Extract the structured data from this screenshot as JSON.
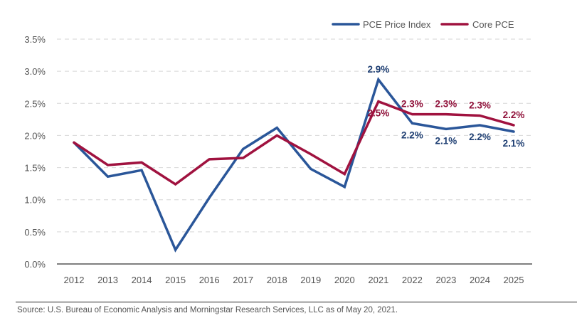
{
  "chart_data": {
    "type": "line",
    "title": "",
    "xlabel": "",
    "ylabel": "",
    "x": [
      "2012",
      "2013",
      "2014",
      "2015",
      "2016",
      "2017",
      "2018",
      "2019",
      "2020",
      "2021",
      "2022",
      "2023",
      "2024",
      "2025"
    ],
    "ylim": [
      0,
      3.5
    ],
    "yticks": [
      0,
      0.5,
      1.0,
      1.5,
      2.0,
      2.5,
      3.0,
      3.5
    ],
    "ytick_labels": [
      "0.0%",
      "0.5%",
      "1.0%",
      "1.5%",
      "2.0%",
      "2.5%",
      "3.0%",
      "3.5%"
    ],
    "grid": "horizontal-dashed",
    "legend_position": "top-right",
    "series": [
      {
        "name": "PCE Price Index",
        "color": "#2a5699",
        "values": [
          1.89,
          1.36,
          1.46,
          0.22,
          1.03,
          1.79,
          2.12,
          1.48,
          1.2,
          2.87,
          2.19,
          2.1,
          2.16,
          2.06
        ],
        "data_labels": [
          {
            "x": "2021",
            "text": "2.9%",
            "position": "above"
          },
          {
            "x": "2022",
            "text": "2.2%",
            "position": "below"
          },
          {
            "x": "2023",
            "text": "2.1%",
            "position": "below"
          },
          {
            "x": "2024",
            "text": "2.2%",
            "position": "below"
          },
          {
            "x": "2025",
            "text": "2.1%",
            "position": "below"
          }
        ]
      },
      {
        "name": "Core PCE",
        "color": "#a0123f",
        "values": [
          1.89,
          1.54,
          1.58,
          1.24,
          1.63,
          1.65,
          2.0,
          1.71,
          1.4,
          2.53,
          2.33,
          2.33,
          2.31,
          2.16
        ],
        "data_labels": [
          {
            "x": "2021",
            "text": "2.5%",
            "position": "below"
          },
          {
            "x": "2022",
            "text": "2.3%",
            "position": "above"
          },
          {
            "x": "2023",
            "text": "2.3%",
            "position": "above"
          },
          {
            "x": "2024",
            "text": "2.3%",
            "position": "above"
          },
          {
            "x": "2025",
            "text": "2.2%",
            "position": "above"
          }
        ]
      }
    ]
  },
  "legend": {
    "items": [
      {
        "label": "PCE Price Index",
        "color": "#2a5699"
      },
      {
        "label": "Core PCE",
        "color": "#a0123f"
      }
    ]
  },
  "footer": {
    "source": "Source: U.S. Bureau of Economic Analysis and Morningstar Research Services, LLC as of May 20, 2021."
  }
}
